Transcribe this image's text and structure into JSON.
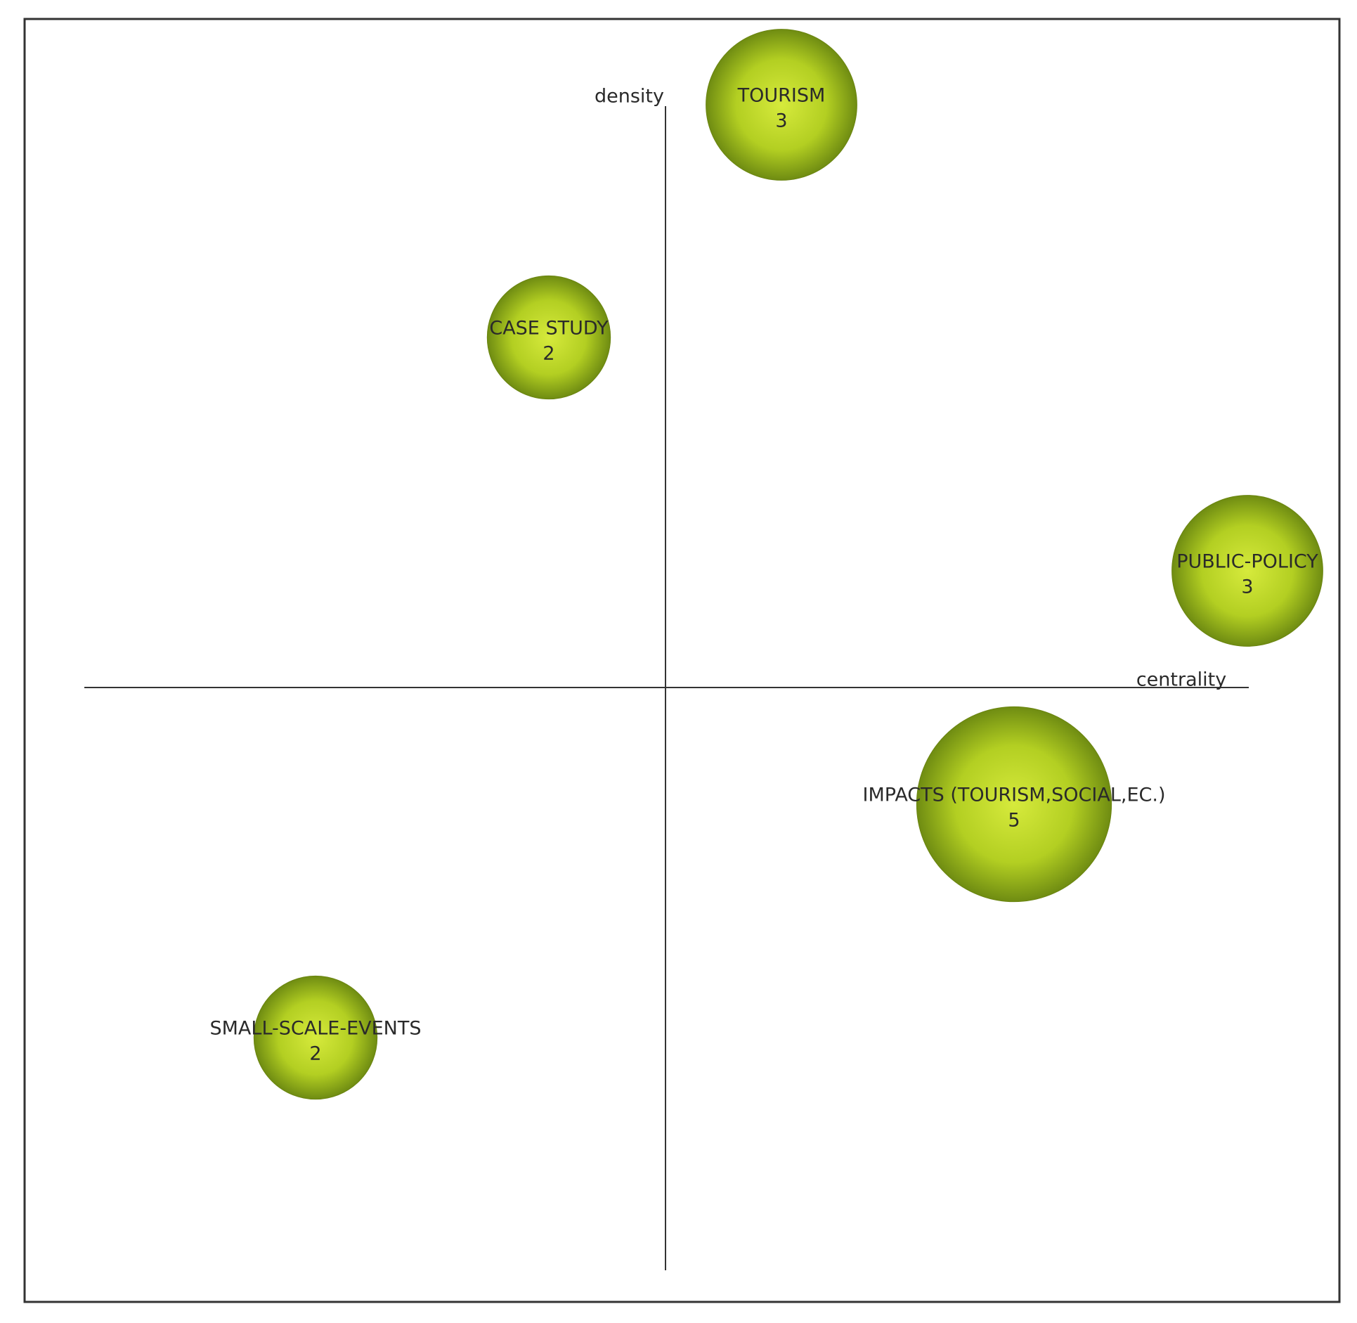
{
  "axes": {
    "x_label": "centrality",
    "y_label": "density"
  },
  "nodes": [
    {
      "label": "TOURISM",
      "count": 3
    },
    {
      "label": "CASE STUDY",
      "count": 2
    },
    {
      "label": "PUBLIC-POLICY",
      "count": 3
    },
    {
      "label": "IMPACTS (TOURISM,SOCIAL,EC.)",
      "count": 5
    },
    {
      "label": "SMALL-SCALE-EVENTS",
      "count": 2
    }
  ]
}
